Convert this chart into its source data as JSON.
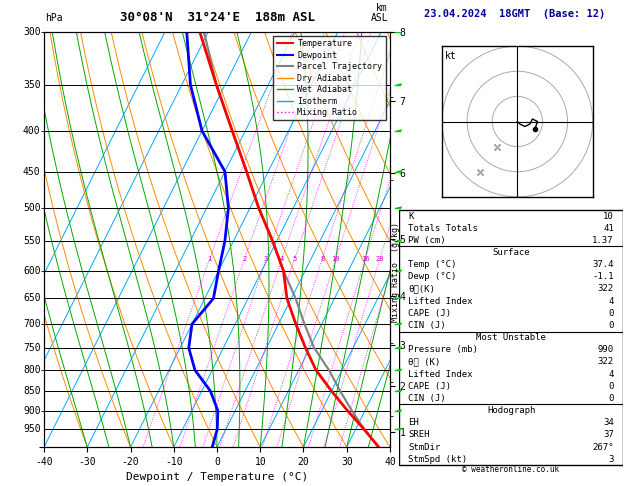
{
  "title_left": "30°08'N  31°24'E  188m ASL",
  "title_right": "23.04.2024  18GMT  (Base: 12)",
  "xlabel": "Dewpoint / Temperature (°C)",
  "pressure_levels": [
    300,
    350,
    400,
    450,
    500,
    550,
    600,
    650,
    700,
    750,
    800,
    850,
    900,
    950
  ],
  "xmin": -40,
  "xmax": 40,
  "pmin": 300,
  "pmax": 1000,
  "km_ticks": {
    "1": 950,
    "2": 810,
    "3": 705,
    "4": 595,
    "5": 490,
    "6": 390,
    "7": 305,
    "8": 240
  },
  "temp_profile": {
    "pressure": [
      1000,
      950,
      900,
      850,
      800,
      750,
      700,
      650,
      600,
      550,
      500,
      450,
      400,
      350,
      300
    ],
    "temp": [
      37.4,
      32,
      26,
      20,
      14,
      9,
      4,
      -1,
      -5,
      -11,
      -18,
      -25,
      -33,
      -42,
      -52
    ]
  },
  "dewp_profile": {
    "pressure": [
      1000,
      950,
      900,
      850,
      800,
      750,
      700,
      650,
      600,
      550,
      500,
      450,
      400,
      350,
      300
    ],
    "temp": [
      -1.1,
      -2,
      -4,
      -8,
      -14,
      -18,
      -20,
      -18,
      -20,
      -22,
      -25,
      -30,
      -40,
      -48,
      -55
    ]
  },
  "parcel_profile": {
    "pressure": [
      1000,
      950,
      900,
      850,
      800,
      750,
      700,
      650,
      600,
      550,
      500,
      450,
      400,
      350,
      300
    ],
    "temp": [
      37.4,
      32,
      27,
      22,
      17,
      11,
      6,
      1,
      -5,
      -11,
      -18,
      -25,
      -33,
      -42,
      -51
    ]
  },
  "mixing_ratio_lines": [
    1,
    2,
    3,
    4,
    5,
    8,
    10,
    16,
    20,
    25
  ],
  "color_temp": "#ff0000",
  "color_dewp": "#0000ff",
  "color_parcel": "#808080",
  "color_dry_adiabat": "#ff8c00",
  "color_wet_adiabat": "#00aa00",
  "color_isotherm": "#00aaff",
  "color_mixing": "#ff00ff",
  "data_table": {
    "K": "10",
    "Totals Totals": "41",
    "PW (cm)": "1.37",
    "Surface_Temp": "37.4",
    "Surface_Dewp": "-1.1",
    "Surface_theta_e": "322",
    "Surface_LI": "4",
    "Surface_CAPE": "0",
    "Surface_CIN": "0",
    "MU_Pressure": "990",
    "MU_theta_e": "322",
    "MU_LI": "4",
    "MU_CAPE": "0",
    "MU_CIN": "0",
    "EH": "34",
    "SREH": "37",
    "StmDir": "267°",
    "StmSpd": "3"
  },
  "copyright": "© weatheronline.co.uk"
}
